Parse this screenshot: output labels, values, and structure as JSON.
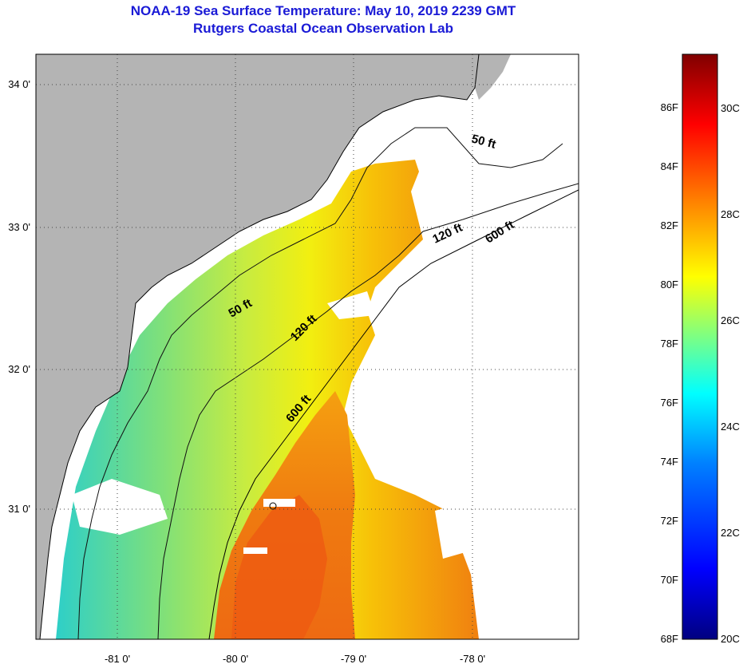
{
  "header": {
    "title": "NOAA-19 Sea Surface Temperature:  May 10, 2019 2239 GMT",
    "subtitle": "Rutgers Coastal Ocean Observation Lab"
  },
  "map": {
    "lon_labels": [
      "-81 0'",
      "-80 0'",
      "-79 0'",
      "-78 0'"
    ],
    "lat_labels": [
      "34 0'",
      "33 0'",
      "32 0'",
      "31 0'"
    ],
    "isobaths": [
      "50 ft",
      "50 ft",
      "120 ft",
      "120 ft",
      "600 ft",
      "600 ft"
    ],
    "colors": {
      "land": "#b4b4b4",
      "cloud": "#ffffff",
      "grid": "#444444"
    }
  },
  "colorbar": {
    "fahrenheit_labels": [
      "86F",
      "84F",
      "82F",
      "80F",
      "78F",
      "76F",
      "74F",
      "72F",
      "70F",
      "68F"
    ],
    "celsius_labels": [
      "30C",
      "28C",
      "26C",
      "24C",
      "22C",
      "20C"
    ]
  }
}
